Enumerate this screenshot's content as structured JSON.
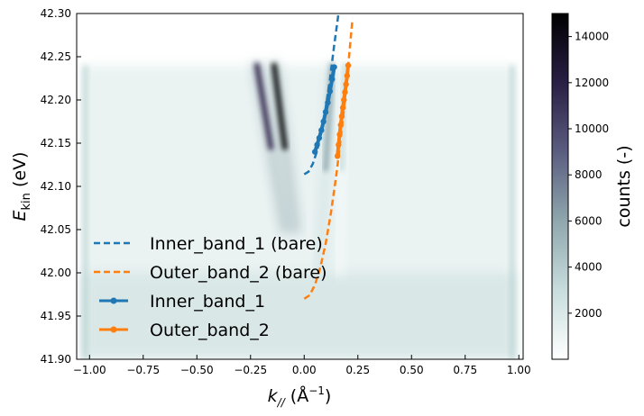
{
  "chart_data": {
    "type": "heatmap",
    "xlabel": "k",
    "xlabel_subscript": "//",
    "xlabel_unit_prefix": " (Å",
    "xlabel_unit_exp": "−1",
    "xlabel_unit_suffix": ")",
    "ylabel": "E",
    "ylabel_subscript": "kin",
    "ylabel_unit": " (eV)",
    "xlim": [
      -1.06,
      1.02
    ],
    "ylim": [
      41.9,
      42.3
    ],
    "xticks": [
      "−1.00",
      "−0.75",
      "−0.50",
      "−0.25",
      "0.00",
      "0.25",
      "0.50",
      "0.75",
      "1.00"
    ],
    "xtick_values": [
      -1.0,
      -0.75,
      -0.5,
      -0.25,
      0.0,
      0.25,
      0.5,
      0.75,
      1.0
    ],
    "yticks": [
      "41.90",
      "41.95",
      "42.00",
      "42.05",
      "42.10",
      "42.15",
      "42.20",
      "42.25",
      "42.30"
    ],
    "ytick_values": [
      41.9,
      41.95,
      42.0,
      42.05,
      42.1,
      42.15,
      42.2,
      42.25,
      42.3
    ],
    "colorbar": {
      "label": "counts (-)",
      "range": [
        0,
        15000
      ],
      "ticks": [
        "2000",
        "4000",
        "6000",
        "8000",
        "10000",
        "12000",
        "14000"
      ],
      "tick_values": [
        2000,
        4000,
        6000,
        8000,
        10000,
        12000,
        14000
      ],
      "colors": [
        "#ffffff",
        "#c8dddd",
        "#8fa7ad",
        "#5b5d80",
        "#2a1f45",
        "#000000"
      ]
    },
    "intensity_features": [
      {
        "k_at_bottom": -0.09,
        "k_at_top": -0.22,
        "e_bottom": 42.05,
        "e_top": 42.24,
        "peak_counts": 13000
      },
      {
        "k_at_bottom": -0.04,
        "k_at_top": -0.14,
        "e_bottom": 42.05,
        "e_top": 42.24,
        "peak_counts": 15000
      },
      {
        "k_at_bottom": 0.07,
        "k_at_top": 0.13,
        "e_bottom": 42.0,
        "e_top": 42.24,
        "peak_counts": 4500
      },
      {
        "k_at_bottom": 0.16,
        "k_at_top": 0.19,
        "e_bottom": 42.0,
        "e_top": 42.24,
        "peak_counts": 3500
      }
    ],
    "series": [
      {
        "name": "Inner_band_1 (bare)",
        "style": "dashed",
        "color": "#1f77b4",
        "x": [
          0.0,
          0.02,
          0.04,
          0.06,
          0.08,
          0.1,
          0.12,
          0.14,
          0.16
        ],
        "y": [
          42.114,
          42.117,
          42.126,
          42.141,
          42.163,
          42.191,
          42.224,
          42.264,
          42.3
        ]
      },
      {
        "name": "Outer_band_2 (bare)",
        "style": "dashed",
        "color": "#ff7f0e",
        "x": [
          0.0,
          0.025,
          0.05,
          0.075,
          0.1,
          0.125,
          0.15,
          0.175,
          0.2,
          0.225
        ],
        "y": [
          41.97,
          41.974,
          41.986,
          42.006,
          42.034,
          42.07,
          42.114,
          42.166,
          42.226,
          42.294
        ]
      },
      {
        "name": "Inner_band_1",
        "style": "markers",
        "color": "#1f77b4",
        "x": [
          0.05,
          0.06,
          0.07,
          0.08,
          0.09,
          0.1,
          0.11,
          0.12,
          0.13,
          0.14
        ],
        "y": [
          42.14,
          42.148,
          42.156,
          42.165,
          42.175,
          42.186,
          42.197,
          42.21,
          42.224,
          42.238
        ]
      },
      {
        "name": "Outer_band_2",
        "style": "markers",
        "color": "#ff7f0e",
        "x": [
          0.155,
          0.16,
          0.165,
          0.17,
          0.175,
          0.18,
          0.185,
          0.19,
          0.195,
          0.2,
          0.205
        ],
        "y": [
          42.135,
          42.148,
          42.16,
          42.171,
          42.181,
          42.191,
          42.2,
          42.209,
          42.218,
          42.228,
          42.24
        ]
      }
    ],
    "legend": {
      "location": "lower-left"
    }
  }
}
